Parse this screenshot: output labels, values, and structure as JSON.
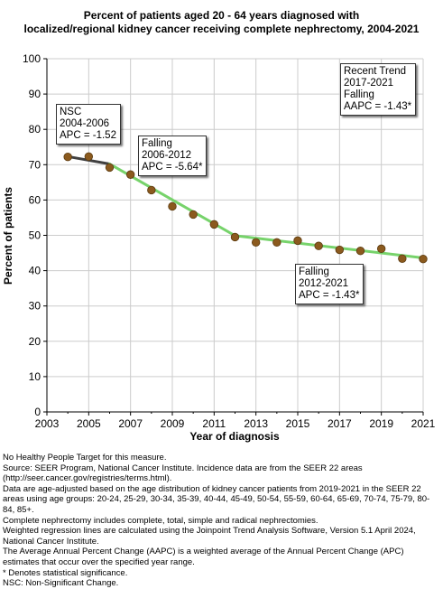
{
  "chart_data": {
    "type": "line",
    "title_lines": [
      "Percent of patients aged 20 - 64 years diagnosed with",
      "localized/regional kidney cancer receiving complete nephrectomy, 2004-2021"
    ],
    "xlabel": "Year of diagnosis",
    "ylabel": "Percent of patients",
    "xlim": [
      2003,
      2021
    ],
    "ylim": [
      0,
      100
    ],
    "x_ticks": [
      2003,
      2005,
      2007,
      2009,
      2011,
      2013,
      2015,
      2017,
      2019,
      2021
    ],
    "y_ticks": [
      0,
      10,
      20,
      30,
      40,
      50,
      60,
      70,
      80,
      90,
      100
    ],
    "grid": true,
    "observed": {
      "x": [
        2004,
        2005,
        2006,
        2007,
        2008,
        2009,
        2010,
        2011,
        2012,
        2013,
        2014,
        2015,
        2016,
        2017,
        2018,
        2019,
        2020,
        2021
      ],
      "y": [
        72.2,
        72.3,
        69.2,
        67.2,
        62.8,
        58.2,
        55.9,
        53.1,
        49.5,
        48.0,
        48.0,
        48.5,
        47.0,
        45.9,
        45.6,
        46.2,
        43.4,
        43.3
      ]
    },
    "trend_segments": [
      {
        "x": [
          2004,
          2006
        ],
        "y": [
          72.3,
          70.2
        ],
        "color": "#404040"
      },
      {
        "x": [
          2006,
          2012
        ],
        "y": [
          70.2,
          49.9
        ],
        "color": "#77d36b"
      },
      {
        "x": [
          2012,
          2021
        ],
        "y": [
          49.9,
          43.6
        ],
        "color": "#77d36b"
      }
    ],
    "annotations": [
      {
        "id": "nsc",
        "lines": [
          "NSC",
          "2004-2006",
          "APC = -1.52"
        ]
      },
      {
        "id": "falling-2006-2012",
        "lines": [
          "Falling",
          "2006-2012",
          "APC = -5.64*"
        ]
      },
      {
        "id": "recent-trend",
        "lines": [
          "Recent Trend",
          "2017-2021",
          "Falling",
          "AAPC = -1.43*"
        ]
      },
      {
        "id": "falling-2012-2021",
        "lines": [
          "Falling",
          "2012-2021",
          "APC = -1.43*"
        ]
      }
    ],
    "colors": {
      "point_fill": "#8b5a1e",
      "point_stroke": "#5a3a10",
      "grid": "#cccccc",
      "plot_bg": "#ffffff"
    }
  },
  "footnotes": [
    "No Healthy People Target for this measure.",
    "Source: SEER Program, National Cancer Institute. Incidence data are from the SEER 22 areas (http://seer.cancer.gov/registries/terms.html).",
    "Data are age-adjusted based on the age distribution of kidney cancer patients from 2019-2021 in the SEER 22 areas using age groups: 20-24, 25-29, 30-34, 35-39, 40-44, 45-49, 50-54, 55-59, 60-64, 65-69, 70-74, 75-79, 80-84, 85+.",
    "Complete nephrectomy includes complete, total, simple and radical nephrectomies.",
    "Weighted regression lines are calculated using the Joinpoint Trend Analysis Software, Version 5.1 April 2024, National Cancer Institute.",
    "The Average Annual Percent Change (AAPC) is a weighted average of the Annual Percent Change (APC) estimates that occur over the specified year range.",
    "* Denotes statistical significance.",
    "NSC: Non-Significant Change."
  ]
}
